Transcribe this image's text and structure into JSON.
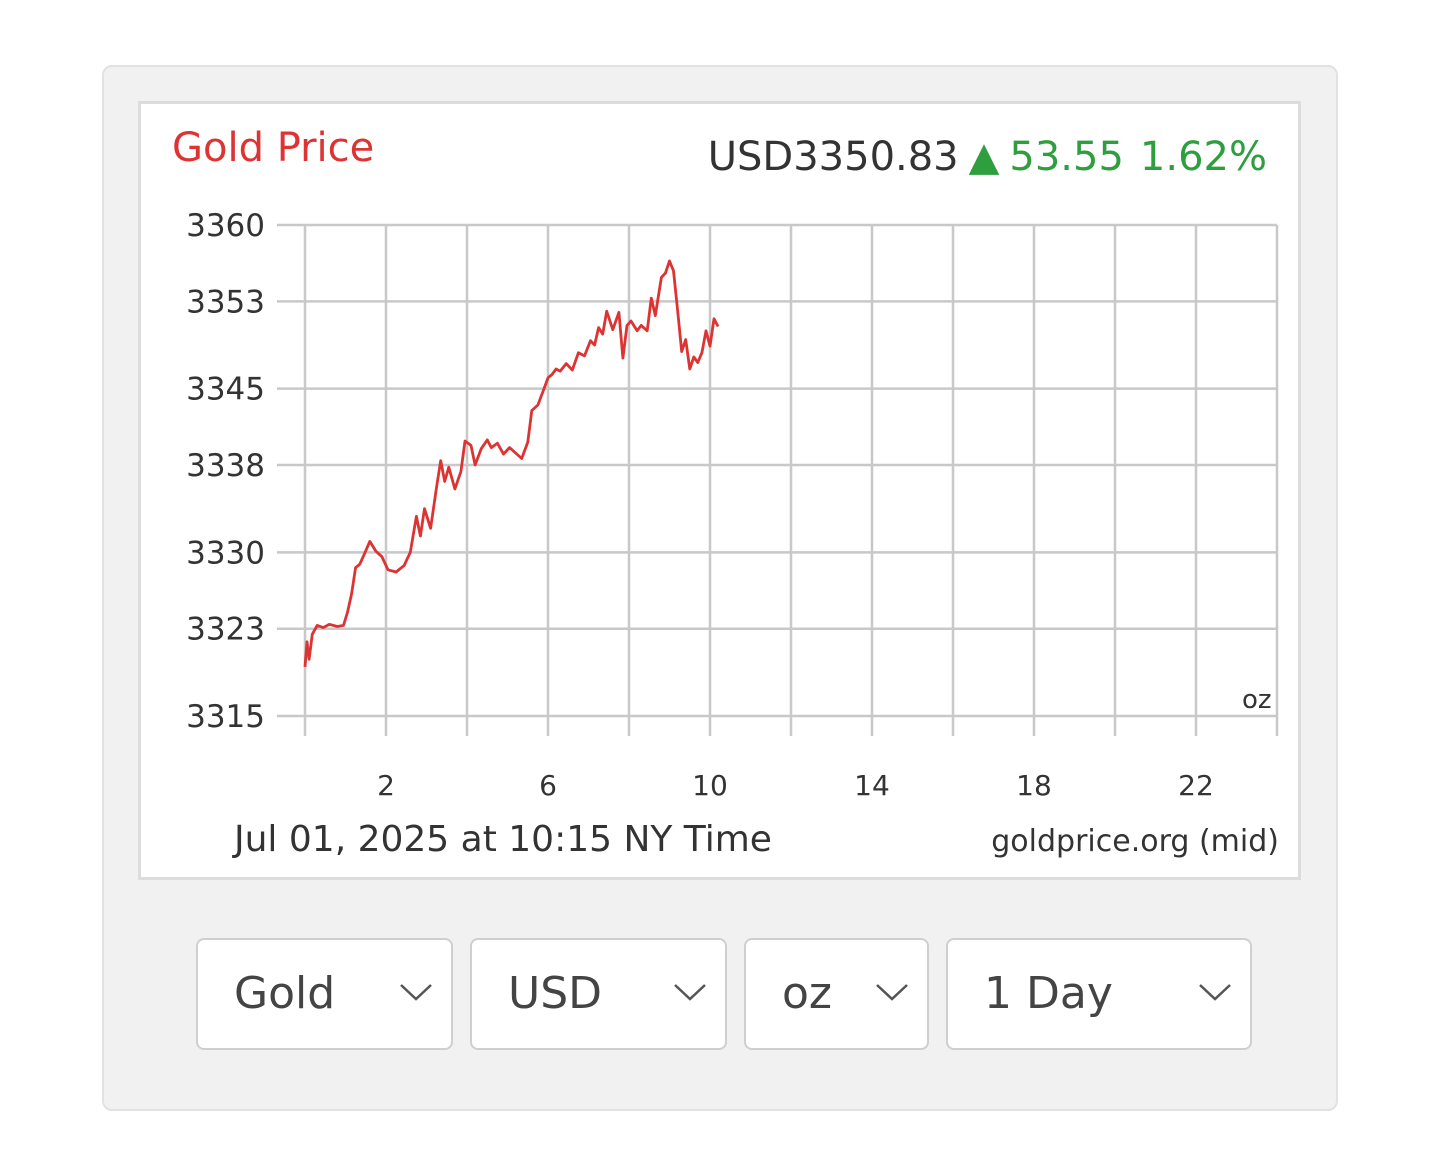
{
  "header": {
    "title": "Gold Price",
    "price": "USD3350.83",
    "arrow": "▲",
    "change": "53.55",
    "change_pct": "1.62%"
  },
  "footer": {
    "timestamp": "Jul 01, 2025 at 10:15 NY Time",
    "source": "goldprice.org (mid)"
  },
  "unit_tag": "oz",
  "colors": {
    "title": "#dd3333",
    "line": "#dd3333",
    "up": "#2e9e3e",
    "grid": "#c8c8c8",
    "text": "#333333"
  },
  "controls": [
    {
      "name": "metal-select",
      "label": "Gold"
    },
    {
      "name": "currency-select",
      "label": "USD"
    },
    {
      "name": "unit-select",
      "label": "oz"
    },
    {
      "name": "range-select",
      "label": "1 Day"
    }
  ],
  "chart_data": {
    "type": "line",
    "title": "Gold Price",
    "xlabel": "",
    "ylabel": "",
    "xlim": [
      0,
      24
    ],
    "ylim": [
      3315,
      3360
    ],
    "x_ticks": [
      2,
      6,
      10,
      14,
      18,
      22
    ],
    "y_ticks": [
      3315,
      3323,
      3330,
      3338,
      3345,
      3353,
      3360
    ],
    "grid": true,
    "series": [
      {
        "values": [
          [
            0.0,
            3319.5
          ],
          [
            0.05,
            3321.8
          ],
          [
            0.1,
            3320.2
          ],
          [
            0.18,
            3322.5
          ],
          [
            0.3,
            3323.3
          ],
          [
            0.45,
            3323.1
          ],
          [
            0.6,
            3323.4
          ],
          [
            0.8,
            3323.2
          ],
          [
            0.95,
            3323.3
          ],
          [
            1.05,
            3324.5
          ],
          [
            1.15,
            3326.2
          ],
          [
            1.25,
            3328.6
          ],
          [
            1.35,
            3328.9
          ],
          [
            1.45,
            3329.7
          ],
          [
            1.6,
            3331.0
          ],
          [
            1.75,
            3330.1
          ],
          [
            1.9,
            3329.6
          ],
          [
            2.05,
            3328.4
          ],
          [
            2.25,
            3328.2
          ],
          [
            2.45,
            3328.8
          ],
          [
            2.6,
            3330.0
          ],
          [
            2.75,
            3333.3
          ],
          [
            2.85,
            3331.5
          ],
          [
            2.95,
            3334.0
          ],
          [
            3.1,
            3332.2
          ],
          [
            3.25,
            3336.0
          ],
          [
            3.35,
            3338.4
          ],
          [
            3.45,
            3336.5
          ],
          [
            3.55,
            3337.8
          ],
          [
            3.7,
            3335.8
          ],
          [
            3.85,
            3337.4
          ],
          [
            3.95,
            3340.2
          ],
          [
            4.1,
            3339.8
          ],
          [
            4.2,
            3338.0
          ],
          [
            4.35,
            3339.5
          ],
          [
            4.5,
            3340.3
          ],
          [
            4.6,
            3339.6
          ],
          [
            4.75,
            3340.0
          ],
          [
            4.9,
            3339.0
          ],
          [
            5.05,
            3339.6
          ],
          [
            5.2,
            3339.1
          ],
          [
            5.35,
            3338.6
          ],
          [
            5.5,
            3340.1
          ],
          [
            5.6,
            3343.0
          ],
          [
            5.75,
            3343.5
          ],
          [
            5.9,
            3345.0
          ],
          [
            6.0,
            3346.0
          ],
          [
            6.1,
            3346.3
          ],
          [
            6.2,
            3346.8
          ],
          [
            6.3,
            3346.6
          ],
          [
            6.45,
            3347.3
          ],
          [
            6.6,
            3346.7
          ],
          [
            6.75,
            3348.3
          ],
          [
            6.9,
            3348.0
          ],
          [
            7.05,
            3349.4
          ],
          [
            7.15,
            3349.0
          ],
          [
            7.25,
            3350.6
          ],
          [
            7.35,
            3350.0
          ],
          [
            7.45,
            3352.1
          ],
          [
            7.6,
            3350.4
          ],
          [
            7.75,
            3352.0
          ],
          [
            7.85,
            3347.8
          ],
          [
            7.95,
            3350.8
          ],
          [
            8.05,
            3351.2
          ],
          [
            8.2,
            3350.3
          ],
          [
            8.3,
            3350.8
          ],
          [
            8.45,
            3350.3
          ],
          [
            8.55,
            3353.3
          ],
          [
            8.65,
            3351.7
          ],
          [
            8.8,
            3355.2
          ],
          [
            8.9,
            3355.6
          ],
          [
            9.0,
            3356.7
          ],
          [
            9.1,
            3355.8
          ],
          [
            9.2,
            3352.2
          ],
          [
            9.3,
            3348.4
          ],
          [
            9.4,
            3349.5
          ],
          [
            9.5,
            3346.8
          ],
          [
            9.6,
            3347.9
          ],
          [
            9.7,
            3347.4
          ],
          [
            9.8,
            3348.3
          ],
          [
            9.9,
            3350.3
          ],
          [
            10.0,
            3348.9
          ],
          [
            10.1,
            3351.4
          ],
          [
            10.2,
            3350.7
          ]
        ]
      }
    ]
  }
}
